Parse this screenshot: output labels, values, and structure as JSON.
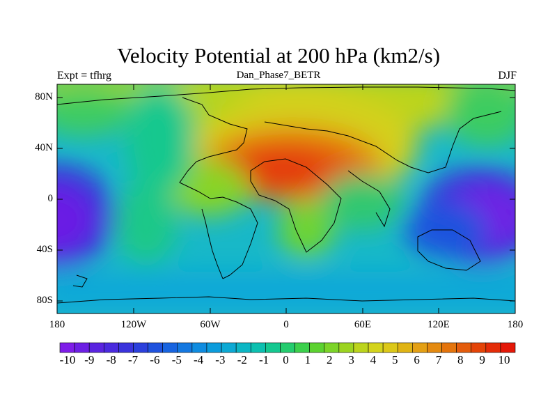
{
  "title": "Velocity Potential at 200 hPa (km2/s)",
  "left_label": "Expt = tfhrg",
  "center_label": "Dan_Phase7_BETR",
  "right_label": "DJF",
  "lat_ticks": [
    "80N",
    "40N",
    "0",
    "40S",
    "80S"
  ],
  "lon_ticks": [
    "180",
    "120W",
    "60W",
    "0",
    "60E",
    "120E",
    "180"
  ],
  "colorbar": {
    "labels": [
      "-10",
      "-9",
      "-8",
      "-7",
      "-6",
      "-5",
      "-4",
      "-3",
      "-2",
      "-1",
      "0",
      "1",
      "2",
      "3",
      "4",
      "5",
      "6",
      "7",
      "8",
      "9",
      "10"
    ],
    "colors": [
      "#7e1de8",
      "#6c1fe4",
      "#5a24e0",
      "#4a2ade",
      "#3a33dc",
      "#2b40dc",
      "#1f52de",
      "#1864e0",
      "#1478e0",
      "#0f8ce0",
      "#0c9cdc",
      "#0ca9d4",
      "#0cb6c4",
      "#0cc0b0",
      "#14c890",
      "#24cc6e",
      "#3cd04c",
      "#5cd230",
      "#7cd428",
      "#9cd420",
      "#bcd41c",
      "#d4d41c",
      "#dcc818",
      "#e0b414",
      "#e4a014",
      "#e48a10",
      "#e4740c",
      "#e45c0c",
      "#e44408",
      "#e42c08",
      "#e41808"
    ]
  }
}
